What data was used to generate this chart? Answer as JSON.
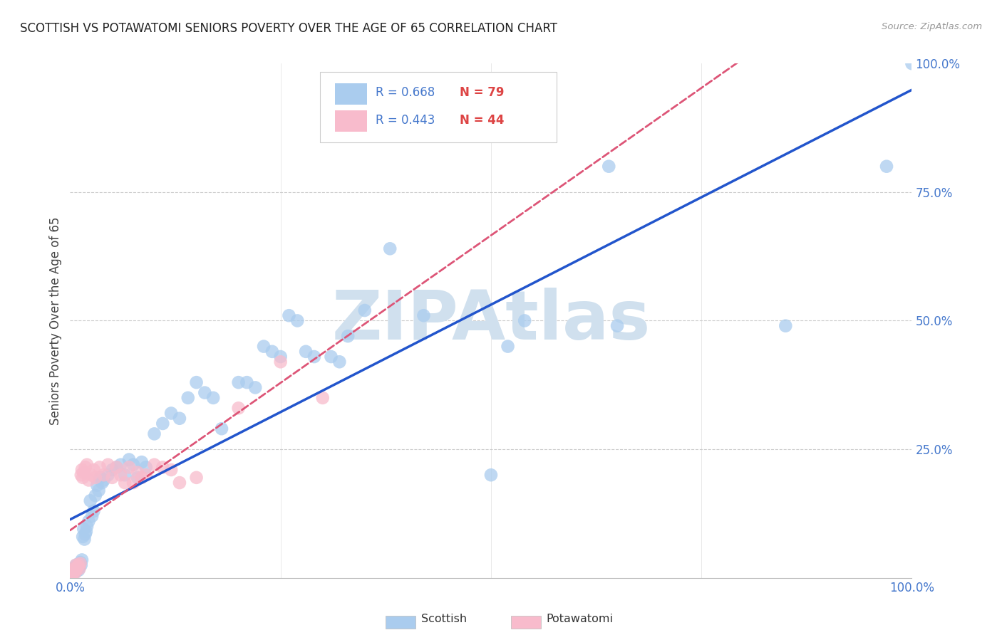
{
  "title": "SCOTTISH VS POTAWATOMI SENIORS POVERTY OVER THE AGE OF 65 CORRELATION CHART",
  "source": "Source: ZipAtlas.com",
  "ylabel": "Seniors Poverty Over the Age of 65",
  "xlim": [
    0,
    1
  ],
  "ylim": [
    0,
    1
  ],
  "scottish_color": "#aaccee",
  "potawatomi_color": "#f8bbcc",
  "scottish_line_color": "#2255cc",
  "potawatomi_line_color": "#dd5577",
  "R_scottish": 0.668,
  "N_scottish": 79,
  "R_potawatomi": 0.443,
  "N_potawatomi": 44,
  "watermark": "ZIPAtlas",
  "watermark_color": "#d0e0ee",
  "grid_color": "#cccccc",
  "axis_label_color": "#4477cc",
  "background_color": "#ffffff",
  "legend_label_color_R": "#4477cc",
  "legend_label_color_N": "#dd4444",
  "scottish_x": [
    0.002,
    0.003,
    0.003,
    0.004,
    0.004,
    0.005,
    0.005,
    0.006,
    0.006,
    0.007,
    0.007,
    0.008,
    0.008,
    0.009,
    0.01,
    0.01,
    0.011,
    0.012,
    0.013,
    0.014,
    0.015,
    0.016,
    0.017,
    0.018,
    0.019,
    0.02,
    0.022,
    0.024,
    0.026,
    0.028,
    0.03,
    0.032,
    0.034,
    0.036,
    0.038,
    0.04,
    0.045,
    0.05,
    0.055,
    0.06,
    0.065,
    0.07,
    0.075,
    0.08,
    0.085,
    0.09,
    0.1,
    0.11,
    0.12,
    0.13,
    0.14,
    0.15,
    0.16,
    0.17,
    0.18,
    0.2,
    0.21,
    0.22,
    0.23,
    0.24,
    0.25,
    0.26,
    0.27,
    0.28,
    0.29,
    0.31,
    0.32,
    0.33,
    0.35,
    0.38,
    0.42,
    0.5,
    0.52,
    0.54,
    0.64,
    0.65,
    0.85,
    0.97,
    1.0
  ],
  "scottish_y": [
    0.005,
    0.008,
    0.01,
    0.012,
    0.015,
    0.01,
    0.018,
    0.015,
    0.02,
    0.012,
    0.025,
    0.02,
    0.022,
    0.018,
    0.025,
    0.015,
    0.02,
    0.03,
    0.025,
    0.035,
    0.08,
    0.095,
    0.075,
    0.085,
    0.09,
    0.1,
    0.11,
    0.15,
    0.12,
    0.13,
    0.16,
    0.18,
    0.17,
    0.195,
    0.185,
    0.19,
    0.2,
    0.21,
    0.215,
    0.22,
    0.2,
    0.23,
    0.22,
    0.195,
    0.225,
    0.215,
    0.28,
    0.3,
    0.32,
    0.31,
    0.35,
    0.38,
    0.36,
    0.35,
    0.29,
    0.38,
    0.38,
    0.37,
    0.45,
    0.44,
    0.43,
    0.51,
    0.5,
    0.44,
    0.43,
    0.43,
    0.42,
    0.47,
    0.52,
    0.64,
    0.51,
    0.2,
    0.45,
    0.5,
    0.8,
    0.49,
    0.49,
    0.8,
    1.0
  ],
  "potawatomi_x": [
    0.002,
    0.003,
    0.003,
    0.004,
    0.005,
    0.005,
    0.006,
    0.007,
    0.007,
    0.008,
    0.009,
    0.01,
    0.011,
    0.012,
    0.013,
    0.014,
    0.015,
    0.016,
    0.018,
    0.02,
    0.022,
    0.025,
    0.028,
    0.03,
    0.035,
    0.04,
    0.045,
    0.05,
    0.055,
    0.06,
    0.065,
    0.07,
    0.075,
    0.08,
    0.085,
    0.09,
    0.1,
    0.11,
    0.12,
    0.13,
    0.15,
    0.2,
    0.25,
    0.3
  ],
  "potawatomi_y": [
    0.005,
    0.008,
    0.01,
    0.012,
    0.015,
    0.018,
    0.01,
    0.015,
    0.025,
    0.02,
    0.022,
    0.025,
    0.018,
    0.028,
    0.2,
    0.21,
    0.195,
    0.205,
    0.215,
    0.22,
    0.19,
    0.2,
    0.21,
    0.195,
    0.215,
    0.2,
    0.22,
    0.195,
    0.215,
    0.2,
    0.185,
    0.215,
    0.185,
    0.205,
    0.195,
    0.2,
    0.22,
    0.215,
    0.21,
    0.185,
    0.195,
    0.33,
    0.42,
    0.35
  ]
}
